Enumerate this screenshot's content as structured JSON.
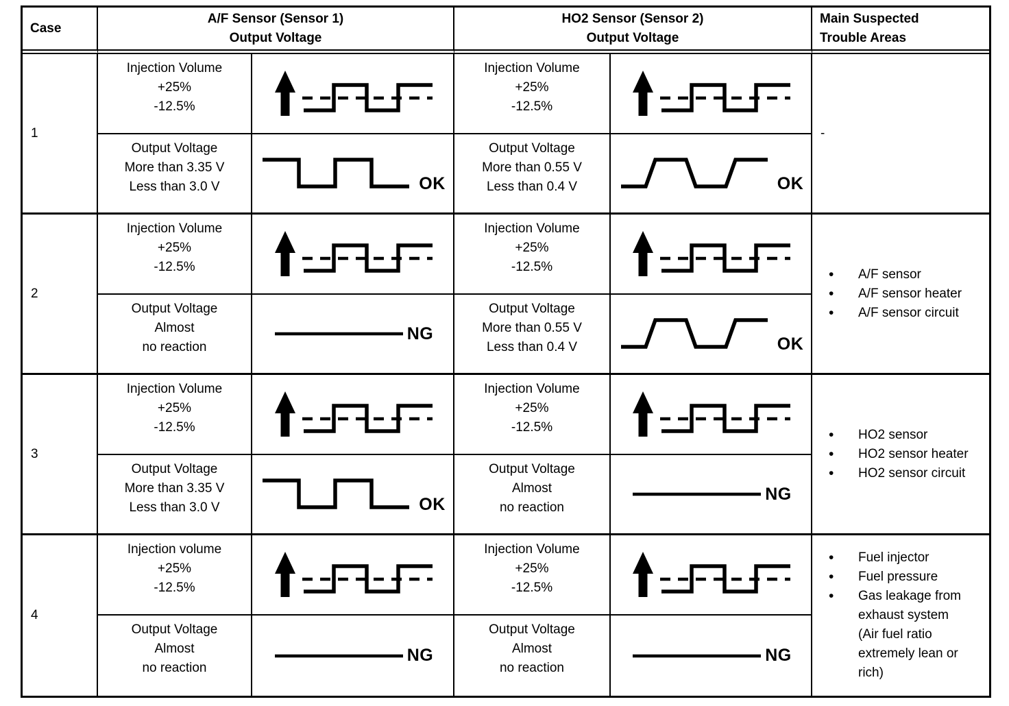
{
  "table": {
    "header": {
      "case": "Case",
      "af_sensor": "A/F Sensor (Sensor 1)\nOutput Voltage",
      "ho2_sensor": "HO2 Sensor (Sensor 2)\nOutput Voltage",
      "trouble": "Main Suspected\nTrouble Areas"
    },
    "colors": {
      "line": "#000000",
      "text": "#000000",
      "background": "#ffffff"
    },
    "cases": [
      {
        "number": "1",
        "af_injection": {
          "label": "Injection Volume\n+25%\n-12.5%",
          "wave": "injection"
        },
        "af_output": {
          "label": "Output Voltage\nMore than 3.35 V\nLess than 3.0 V",
          "wave": "square",
          "result": "OK"
        },
        "ho2_injection": {
          "label": "Injection Volume\n+25%\n-12.5%",
          "wave": "injection"
        },
        "ho2_output": {
          "label": "Output Voltage\nMore than 0.55 V\nLess than 0.4 V",
          "wave": "trapezoid",
          "result": "OK"
        },
        "trouble": {
          "text": "-"
        }
      },
      {
        "number": "2",
        "af_injection": {
          "label": "Injection Volume\n+25%\n-12.5%",
          "wave": "injection"
        },
        "af_output": {
          "label": "Output Voltage\nAlmost\nno reaction",
          "wave": "flat",
          "result": "NG"
        },
        "ho2_injection": {
          "label": "Injection Volume\n+25%\n-12.5%",
          "wave": "injection"
        },
        "ho2_output": {
          "label": "Output Voltage\nMore than 0.55 V\nLess than 0.4 V",
          "wave": "trapezoid",
          "result": "OK"
        },
        "trouble": {
          "items": [
            "A/F sensor",
            "A/F sensor heater",
            "A/F sensor circuit"
          ]
        }
      },
      {
        "number": "3",
        "af_injection": {
          "label": "Injection Volume\n+25%\n-12.5%",
          "wave": "injection"
        },
        "af_output": {
          "label": "Output Voltage\nMore than 3.35 V\nLess than 3.0 V",
          "wave": "square",
          "result": "OK"
        },
        "ho2_injection": {
          "label": "Injection Volume\n+25%\n-12.5%",
          "wave": "injection"
        },
        "ho2_output": {
          "label": "Output Voltage\nAlmost\nno reaction",
          "wave": "flat",
          "result": "NG"
        },
        "trouble": {
          "items": [
            "HO2 sensor",
            "HO2 sensor heater",
            "HO2 sensor circuit"
          ]
        }
      },
      {
        "number": "4",
        "af_injection": {
          "label": "Injection volume\n+25%\n-12.5%",
          "wave": "injection"
        },
        "af_output": {
          "label": "Output Voltage\nAlmost\nno reaction",
          "wave": "flat",
          "result": "NG"
        },
        "ho2_injection": {
          "label": "Injection Volume\n+25%\n-12.5%",
          "wave": "injection"
        },
        "ho2_output": {
          "label": "Output Voltage\nAlmost\nno reaction",
          "wave": "flat",
          "result": "NG"
        },
        "trouble": {
          "items": [
            "Fuel injector",
            "Fuel pressure",
            "Gas leakage from\nexhaust system\n(Air fuel ratio\nextremely lean or\nrich)"
          ]
        }
      }
    ]
  }
}
